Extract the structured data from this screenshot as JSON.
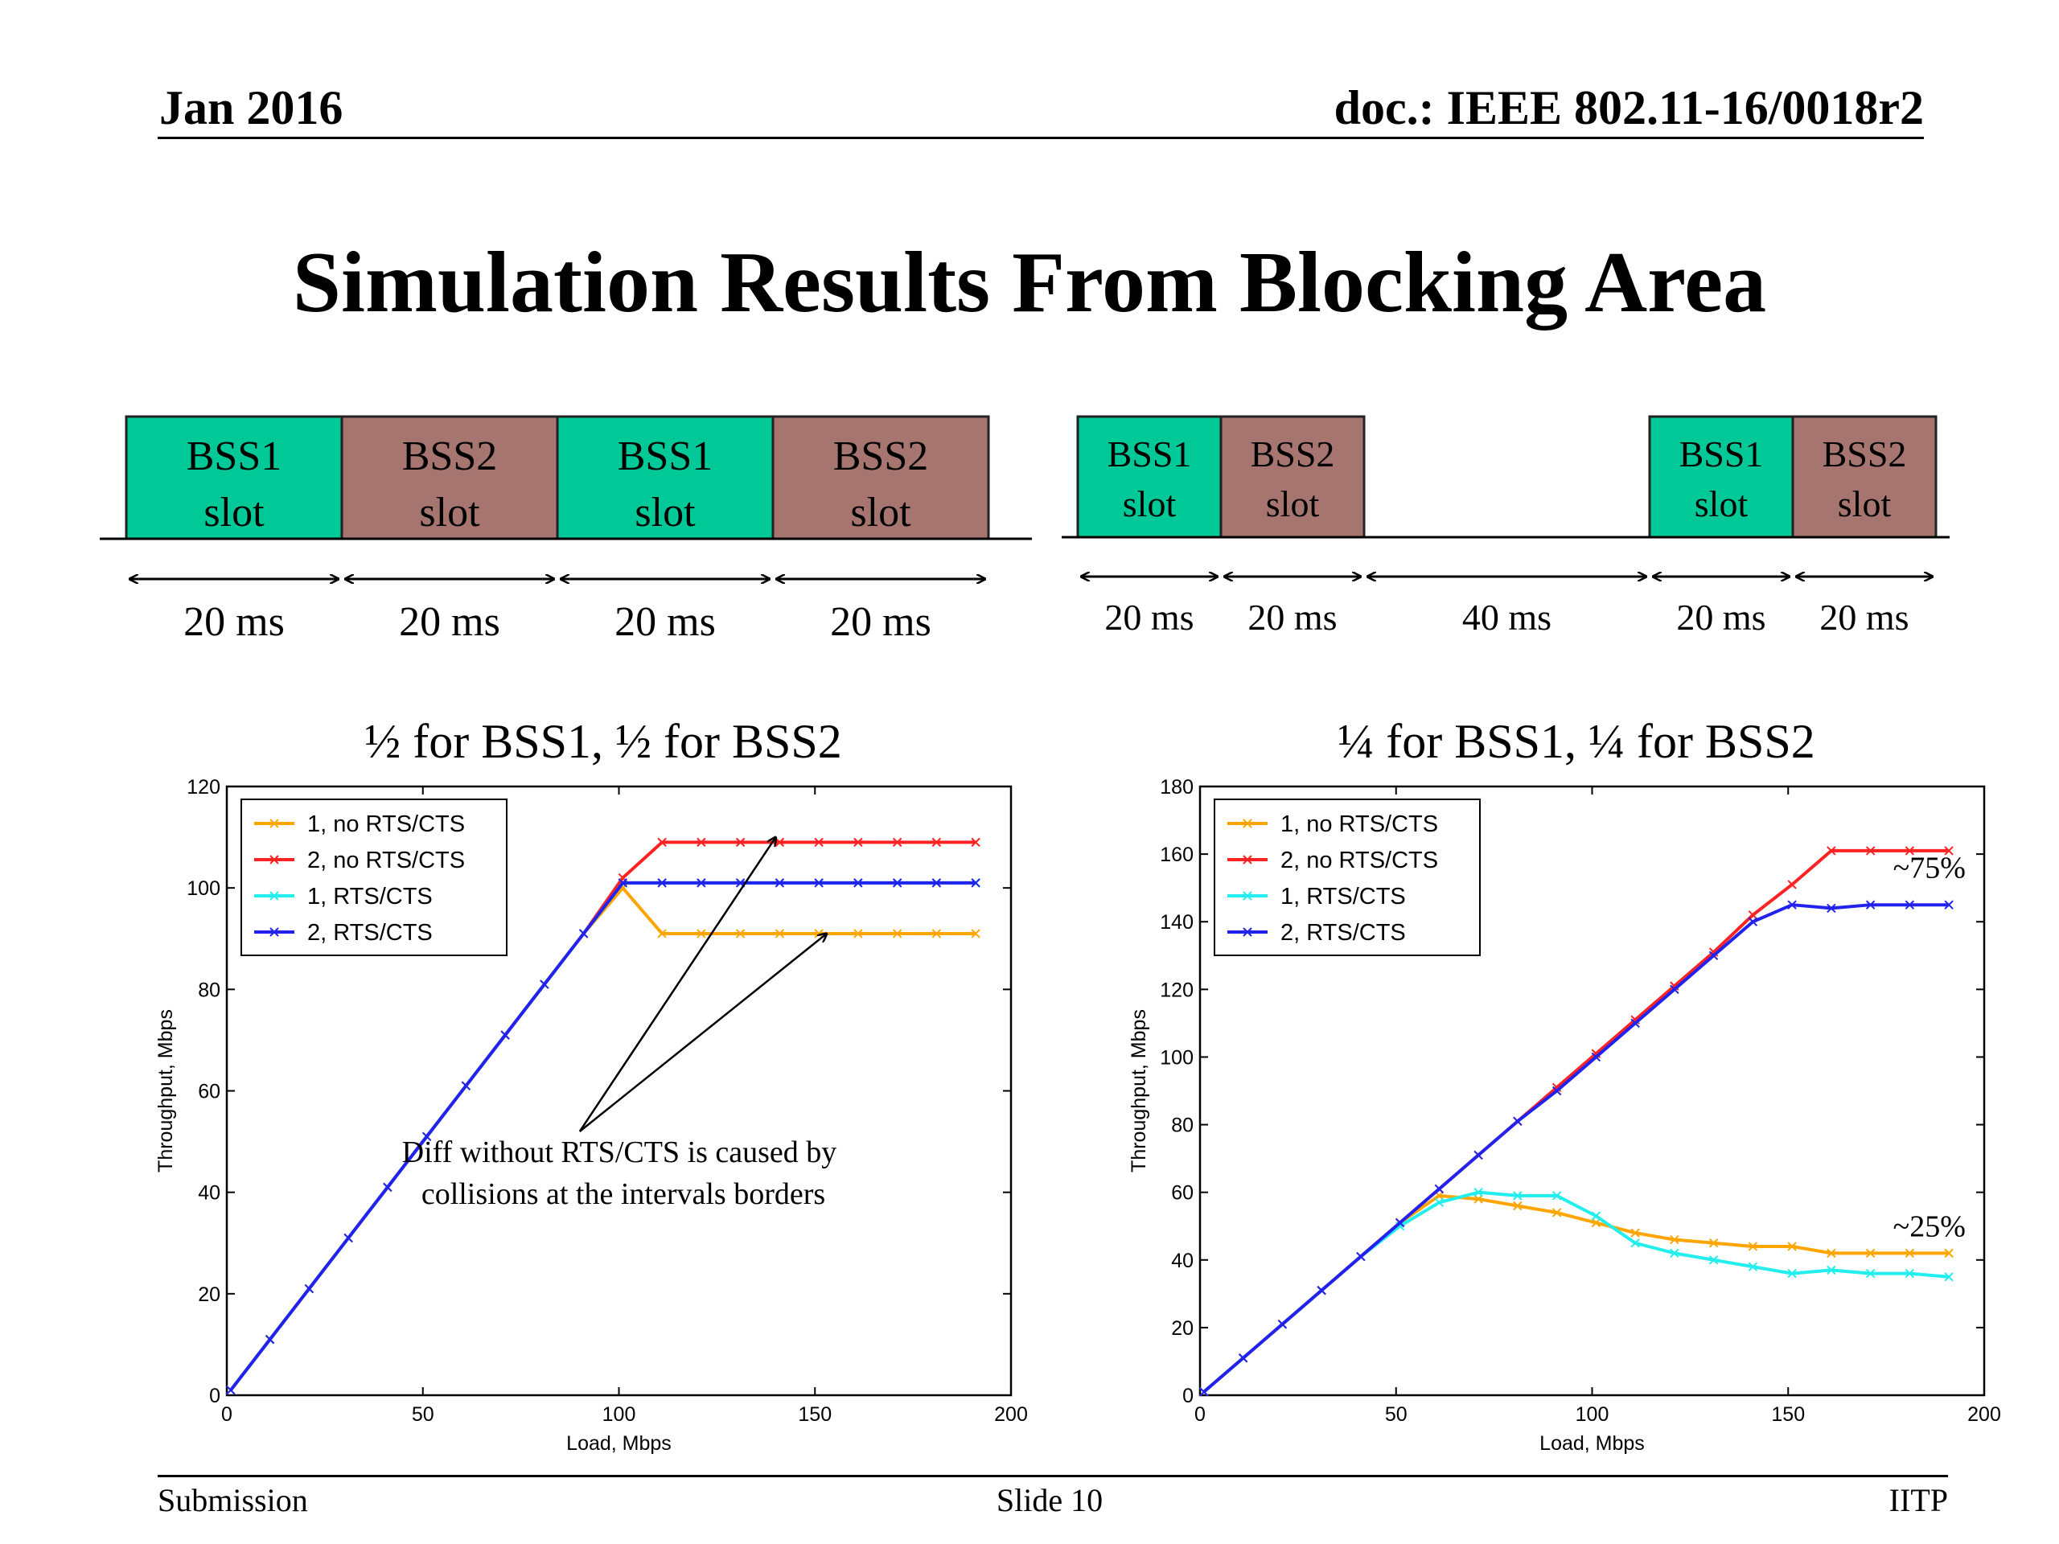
{
  "header": {
    "date": "Jan 2016",
    "doc": "doc.: IEEE 802.11-16/0018r2"
  },
  "title": "Simulation Results From Blocking Area",
  "timeline_left": {
    "slots": [
      {
        "line1": "BSS1",
        "line2": "slot",
        "bss": 1
      },
      {
        "line1": "BSS2",
        "line2": "slot",
        "bss": 2
      },
      {
        "line1": "BSS1",
        "line2": "slot",
        "bss": 1
      },
      {
        "line1": "BSS2",
        "line2": "slot",
        "bss": 2
      }
    ],
    "durations": [
      "20 ms",
      "20 ms",
      "20 ms",
      "20 ms"
    ]
  },
  "timeline_right": {
    "segments": [
      {
        "type": "slot",
        "line1": "BSS1",
        "line2": "slot",
        "bss": 1,
        "duration": "20 ms"
      },
      {
        "type": "slot",
        "line1": "BSS2",
        "line2": "slot",
        "bss": 2,
        "duration": "20 ms"
      },
      {
        "type": "gap",
        "duration": "40 ms"
      },
      {
        "type": "slot",
        "line1": "BSS1",
        "line2": "slot",
        "bss": 1,
        "duration": "20 ms"
      },
      {
        "type": "slot",
        "line1": "BSS2",
        "line2": "slot",
        "bss": 2,
        "duration": "20 ms"
      }
    ]
  },
  "colors": {
    "bss1": "#00c896",
    "bss2": "#a6756f"
  },
  "chart_data": [
    {
      "type": "line",
      "title": "½ for BSS1, ½ for BSS2",
      "xlabel": "Load, Mbps",
      "ylabel": "Throughput, Mbps",
      "xlim": [
        0,
        200
      ],
      "ylim": [
        0,
        120
      ],
      "xticks": [
        0,
        50,
        100,
        150,
        200
      ],
      "yticks": [
        0,
        20,
        40,
        60,
        80,
        100,
        120
      ],
      "legend_position": "top-left",
      "x": [
        1,
        11,
        21,
        31,
        41,
        51,
        61,
        71,
        81,
        91,
        101,
        111,
        121,
        131,
        141,
        151,
        161,
        171,
        181,
        191
      ],
      "series": [
        {
          "name": "1, no RTS/CTS",
          "color": "#ffa500",
          "marker": "x",
          "values": [
            1,
            11,
            21,
            31,
            41,
            51,
            61,
            71,
            81,
            91,
            100,
            91,
            91,
            91,
            91,
            91,
            91,
            91,
            91,
            91
          ]
        },
        {
          "name": "2, no RTS/CTS",
          "color": "#ff2222",
          "marker": "x",
          "values": [
            1,
            11,
            21,
            31,
            41,
            51,
            61,
            71,
            81,
            91,
            102,
            109,
            109,
            109,
            109,
            109,
            109,
            109,
            109,
            109
          ]
        },
        {
          "name": "1, RTS/CTS",
          "color": "#22eeee",
          "marker": "x",
          "values": [
            1,
            11,
            21,
            31,
            41,
            51,
            61,
            71,
            81,
            91,
            101,
            101,
            101,
            101,
            101,
            101,
            101,
            101,
            101,
            101
          ]
        },
        {
          "name": "2, RTS/CTS",
          "color": "#2222ee",
          "marker": "x",
          "values": [
            1,
            11,
            21,
            31,
            41,
            51,
            61,
            71,
            81,
            91,
            101,
            101,
            101,
            101,
            101,
            101,
            101,
            101,
            101,
            101
          ]
        }
      ],
      "annotation": {
        "text_line1": "Diff without RTS/CTS is caused by",
        "text_line2": "collisions at the intervals borders",
        "origin": [
          90,
          52
        ],
        "targets": [
          [
            140,
            110
          ],
          [
            153,
            91
          ]
        ]
      }
    },
    {
      "type": "line",
      "title": "¼ for BSS1, ¼ for BSS2",
      "xlabel": "Load, Mbps",
      "ylabel": "Throughput, Mbps",
      "xlim": [
        0,
        200
      ],
      "ylim": [
        0,
        180
      ],
      "xticks": [
        0,
        50,
        100,
        150,
        200
      ],
      "yticks": [
        0,
        20,
        40,
        60,
        80,
        100,
        120,
        140,
        160,
        180
      ],
      "legend_position": "top-left",
      "x": [
        1,
        11,
        21,
        31,
        41,
        51,
        61,
        71,
        81,
        91,
        101,
        111,
        121,
        131,
        141,
        151,
        161,
        171,
        181,
        191
      ],
      "series": [
        {
          "name": "1, no RTS/CTS",
          "color": "#ffa500",
          "marker": "x",
          "values": [
            1,
            11,
            21,
            31,
            41,
            51,
            59,
            58,
            56,
            54,
            51,
            48,
            46,
            45,
            44,
            44,
            42,
            42,
            42,
            42
          ]
        },
        {
          "name": "2, no RTS/CTS",
          "color": "#ff2222",
          "marker": "x",
          "values": [
            1,
            11,
            21,
            31,
            41,
            51,
            61,
            71,
            81,
            91,
            101,
            111,
            121,
            131,
            142,
            151,
            161,
            161,
            161,
            161
          ]
        },
        {
          "name": "1, RTS/CTS",
          "color": "#22eeee",
          "marker": "x",
          "values": [
            1,
            11,
            21,
            31,
            41,
            50,
            57,
            60,
            59,
            59,
            53,
            45,
            42,
            40,
            38,
            36,
            37,
            36,
            36,
            35
          ]
        },
        {
          "name": "2, RTS/CTS",
          "color": "#2222ee",
          "marker": "x",
          "values": [
            1,
            11,
            21,
            31,
            41,
            51,
            61,
            71,
            81,
            90,
            100,
            110,
            120,
            130,
            140,
            145,
            144,
            145,
            145,
            145
          ]
        }
      ],
      "annotations": [
        {
          "text": "~75%",
          "at": [
            186,
            153
          ]
        },
        {
          "text": "~25%",
          "at": [
            186,
            47
          ]
        }
      ]
    }
  ],
  "footer": {
    "left": "Submission",
    "center": "Slide 10",
    "right": "IITP"
  }
}
